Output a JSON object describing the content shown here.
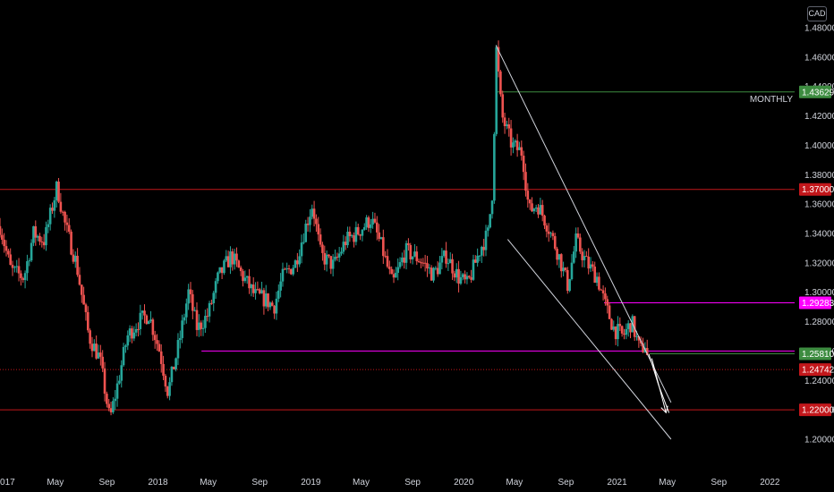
{
  "chart_data": {
    "type": "candlestick",
    "currency": "CAD",
    "ylim": [
      1.19,
      1.49
    ],
    "yticks": [
      "1.48000",
      "1.46000",
      "1.44000",
      "1.42000",
      "1.40000",
      "1.38000",
      "1.36000",
      "1.34000",
      "1.32000",
      "1.30000",
      "1.28000",
      "1.26000",
      "1.24000",
      "1.22000",
      "1.20000"
    ],
    "xlim": [
      "2016-12-20",
      "2022-03-01"
    ],
    "xticks": [
      {
        "label": "2017",
        "date": "2017-01-01"
      },
      {
        "label": "May",
        "date": "2017-05-01"
      },
      {
        "label": "Sep",
        "date": "2017-09-01"
      },
      {
        "label": "2018",
        "date": "2018-01-01"
      },
      {
        "label": "May",
        "date": "2018-05-01"
      },
      {
        "label": "Sep",
        "date": "2018-09-01"
      },
      {
        "label": "2019",
        "date": "2019-01-01"
      },
      {
        "label": "May",
        "date": "2019-05-01"
      },
      {
        "label": "Sep",
        "date": "2019-09-01"
      },
      {
        "label": "2020",
        "date": "2020-01-01"
      },
      {
        "label": "May",
        "date": "2020-05-01"
      },
      {
        "label": "Sep",
        "date": "2020-09-01"
      },
      {
        "label": "2021",
        "date": "2021-01-01"
      },
      {
        "label": "May",
        "date": "2021-05-01"
      },
      {
        "label": "Sep",
        "date": "2021-09-01"
      },
      {
        "label": "2022",
        "date": "2022-01-01"
      }
    ],
    "path": [
      [
        "2016-12-20",
        1.345
      ],
      [
        "2017-01-15",
        1.315
      ],
      [
        "2017-02-15",
        1.31
      ],
      [
        "2017-03-10",
        1.34
      ],
      [
        "2017-04-05",
        1.335
      ],
      [
        "2017-05-05",
        1.372
      ],
      [
        "2017-05-25",
        1.345
      ],
      [
        "2017-06-20",
        1.32
      ],
      [
        "2017-07-20",
        1.27
      ],
      [
        "2017-08-15",
        1.255
      ],
      [
        "2017-09-08",
        1.213
      ],
      [
        "2017-09-25",
        1.235
      ],
      [
        "2017-10-20",
        1.27
      ],
      [
        "2017-11-15",
        1.28
      ],
      [
        "2017-12-10",
        1.285
      ],
      [
        "2018-01-05",
        1.26
      ],
      [
        "2018-01-25",
        1.232
      ],
      [
        "2018-02-20",
        1.265
      ],
      [
        "2018-03-15",
        1.3
      ],
      [
        "2018-04-05",
        1.275
      ],
      [
        "2018-05-01",
        1.285
      ],
      [
        "2018-05-25",
        1.31
      ],
      [
        "2018-06-25",
        1.325
      ],
      [
        "2018-07-20",
        1.312
      ],
      [
        "2018-08-20",
        1.298
      ],
      [
        "2018-09-15",
        1.295
      ],
      [
        "2018-10-05",
        1.29
      ],
      [
        "2018-10-25",
        1.31
      ],
      [
        "2018-11-25",
        1.32
      ],
      [
        "2018-12-20",
        1.345
      ],
      [
        "2019-01-05",
        1.36
      ],
      [
        "2019-01-25",
        1.325
      ],
      [
        "2019-02-25",
        1.318
      ],
      [
        "2019-03-25",
        1.335
      ],
      [
        "2019-04-20",
        1.34
      ],
      [
        "2019-05-25",
        1.35
      ],
      [
        "2019-06-20",
        1.33
      ],
      [
        "2019-07-15",
        1.305
      ],
      [
        "2019-08-15",
        1.328
      ],
      [
        "2019-09-20",
        1.322
      ],
      [
        "2019-10-20",
        1.312
      ],
      [
        "2019-11-20",
        1.325
      ],
      [
        "2019-12-20",
        1.31
      ],
      [
        "2020-01-10",
        1.305
      ],
      [
        "2020-02-10",
        1.33
      ],
      [
        "2020-02-28",
        1.34
      ],
      [
        "2020-03-10",
        1.37
      ],
      [
        "2020-03-19",
        1.465
      ],
      [
        "2020-04-01",
        1.42
      ],
      [
        "2020-04-25",
        1.4
      ],
      [
        "2020-05-20",
        1.395
      ],
      [
        "2020-06-05",
        1.355
      ],
      [
        "2020-06-25",
        1.36
      ],
      [
        "2020-07-20",
        1.345
      ],
      [
        "2020-08-15",
        1.325
      ],
      [
        "2020-09-05",
        1.305
      ],
      [
        "2020-09-25",
        1.335
      ],
      [
        "2020-10-20",
        1.32
      ],
      [
        "2020-11-15",
        1.31
      ],
      [
        "2020-12-05",
        1.29
      ],
      [
        "2020-12-25",
        1.275
      ],
      [
        "2021-01-15",
        1.27
      ],
      [
        "2021-02-05",
        1.28
      ],
      [
        "2021-02-25",
        1.26
      ],
      [
        "2021-03-10",
        1.265
      ],
      [
        "2021-03-18",
        1.248
      ]
    ],
    "horizontal_levels": [
      {
        "value": 1.37,
        "label": "1.37000",
        "color": "#c2171b",
        "style": "solid",
        "from": "2016-12-20"
      },
      {
        "value": 1.22,
        "label": "1.22000",
        "color": "#c2171b",
        "style": "solid",
        "from": "2016-12-20"
      },
      {
        "value": 1.29283,
        "label": "1.29283",
        "color": "#ff00ff",
        "style": "solid",
        "from": "2020-12-01"
      },
      {
        "value": 1.26,
        "label": "",
        "color": "#ff00ff",
        "style": "solid",
        "from": "2018-04-15"
      },
      {
        "value": 1.43629,
        "label": "1.43629",
        "color": "#3d8c40",
        "style": "solid",
        "from": "2020-03-20",
        "text": "MONTHLY"
      },
      {
        "value": 1.2581,
        "label": "1.25810",
        "color": "#3d8c40",
        "style": "solid",
        "from": "2021-03-20"
      },
      {
        "value": 1.24742,
        "label": "1.24742",
        "color": "#c2171b",
        "style": "dotted",
        "from": "2016-12-20"
      }
    ],
    "channel": {
      "upper": [
        [
          "2020-03-18",
          1.468
        ],
        [
          "2021-05-10",
          1.225
        ]
      ],
      "lower": [
        [
          "2020-04-15",
          1.336
        ],
        [
          "2021-05-10",
          1.2
        ]
      ],
      "color": "#d1d4dc"
    },
    "projection": [
      [
        "2021-03-18",
        1.258
      ],
      [
        "2021-04-10",
        1.237
      ],
      [
        "2021-05-05",
        1.218
      ]
    ],
    "arrow": {
      "points": [
        [
          "2021-03-25",
          1.255
        ],
        [
          "2021-04-28",
          1.218
        ]
      ],
      "color": "#ffffff"
    },
    "colors": {
      "up": "#26a69a",
      "down": "#ef5350",
      "background": "#000000",
      "text": "#d1d4dc"
    }
  }
}
